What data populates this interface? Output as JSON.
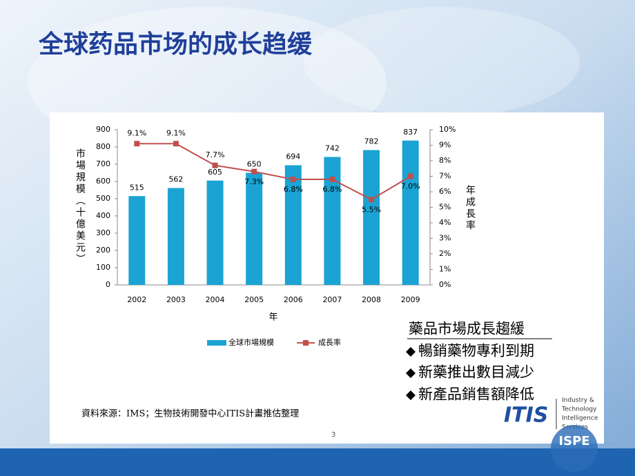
{
  "slide": {
    "title": "全球药品市场的成长趋缓",
    "page_number": "3"
  },
  "chart_data": {
    "type": "bar",
    "categories": [
      "2002",
      "2003",
      "2004",
      "2005",
      "2006",
      "2007",
      "2008",
      "2009"
    ],
    "series": [
      {
        "name": "全球市場規模",
        "type": "bar",
        "color": "#1ba3d4",
        "values": [
          515,
          562,
          605,
          650,
          694,
          742,
          782,
          837
        ]
      },
      {
        "name": "成長率",
        "type": "line",
        "axis": "y2",
        "color": "#c0504d",
        "values": [
          9.1,
          9.1,
          7.7,
          7.3,
          6.8,
          6.8,
          5.5,
          7.0
        ],
        "value_labels": [
          "9.1%",
          "9.1%",
          "7.7%",
          "7.3%",
          "6.8%",
          "6.8%",
          "5.5%",
          "7.0%"
        ]
      }
    ],
    "ylabel": "市場規模（十億美元）",
    "y2label": "年成長率",
    "xlabel": "年",
    "ylim": [
      0,
      900
    ],
    "yticks": [
      0,
      100,
      200,
      300,
      400,
      500,
      600,
      700,
      800,
      900
    ],
    "y2lim": [
      0,
      10
    ],
    "y2ticks": [
      {
        "value": 0,
        "label": "0%"
      },
      {
        "value": 1,
        "label": "1%"
      },
      {
        "value": 2,
        "label": "2%"
      },
      {
        "value": 3,
        "label": "3%"
      },
      {
        "value": 4,
        "label": "4%"
      },
      {
        "value": 5,
        "label": "5%"
      },
      {
        "value": 6,
        "label": "6%"
      },
      {
        "value": 7,
        "label": "7%"
      },
      {
        "value": 8,
        "label": "8%"
      },
      {
        "value": 9,
        "label": "9%"
      },
      {
        "value": 10,
        "label": "10%"
      }
    ],
    "legend": "bottom",
    "grid": false
  },
  "summary": {
    "title": "藥品市場成長趨緩",
    "items": [
      "暢銷藥物專利到期",
      "新藥推出數目減少",
      "新產品銷售額降低"
    ]
  },
  "source": "資料來源：IMS；生物技術開發中心ITIS計畫推估整理",
  "logo": {
    "mark": "ITIS",
    "lines": [
      "Industry &",
      "Technology",
      "Intelligence",
      "Services"
    ],
    "badge": "ISPE"
  }
}
